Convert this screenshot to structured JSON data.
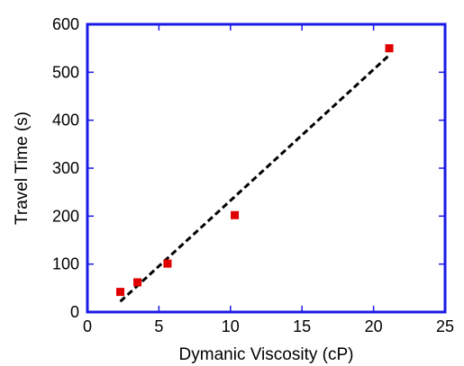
{
  "chart_data": {
    "type": "scatter",
    "title": "",
    "xlabel": "Dymanic Viscosity (cP)",
    "ylabel": "Travel Time (s)",
    "xlim": [
      0,
      25
    ],
    "ylim": [
      0,
      600
    ],
    "x_ticks": [
      0,
      5,
      10,
      15,
      20,
      25
    ],
    "y_ticks": [
      0,
      100,
      200,
      300,
      400,
      500,
      600
    ],
    "x_tick_labels": [
      "0",
      "5",
      "10",
      "15",
      "20",
      "25"
    ],
    "y_tick_labels": [
      "0",
      "100",
      "200",
      "300",
      "400",
      "500",
      "600"
    ],
    "grid": false,
    "legend": "none",
    "series": [
      {
        "kind": "points",
        "marker": "square",
        "color": "#e00000",
        "points": [
          {
            "x": 2.3,
            "y": 42
          },
          {
            "x": 3.5,
            "y": 62
          },
          {
            "x": 5.6,
            "y": 101
          },
          {
            "x": 10.3,
            "y": 202
          },
          {
            "x": 21.1,
            "y": 550
          }
        ]
      },
      {
        "kind": "fit-line",
        "style": "dashed",
        "color": "#000000",
        "points": [
          {
            "x": 2.3,
            "y": 22
          },
          {
            "x": 21.0,
            "y": 533
          }
        ]
      }
    ],
    "axis_color": "#1a1ae6"
  }
}
